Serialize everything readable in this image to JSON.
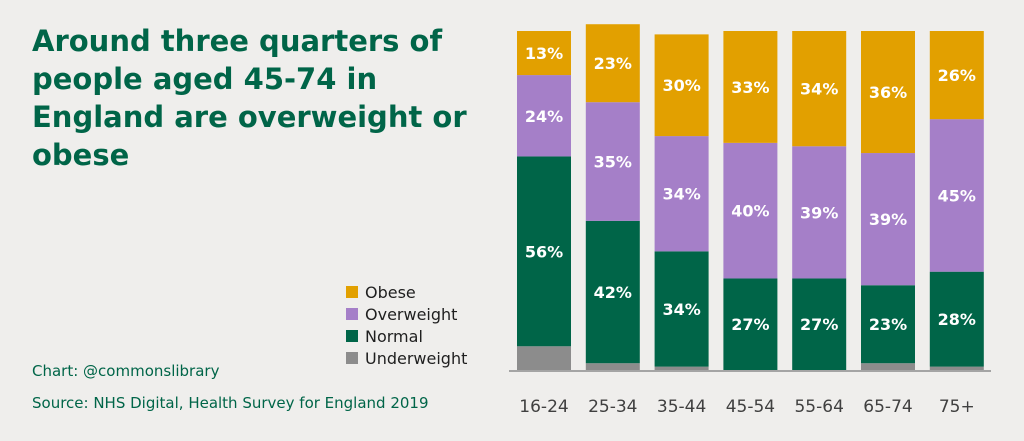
{
  "title": "Around three quarters of people aged 45-74 in England are overweight or obese",
  "credit": "Chart: @commonslibrary",
  "source": "Source: NHS Digital, Health Survey for England 2019",
  "colors": {
    "obese": "#e2a000",
    "overweight": "#a57fc8",
    "normal": "#006548",
    "underweight": "#8c8c8c",
    "axis": "#8c8c8c",
    "tick_text": "#404040",
    "title": "#006548"
  },
  "legend": [
    {
      "label": "Obese",
      "color": "#e2a000"
    },
    {
      "label": "Overweight",
      "color": "#a57fc8"
    },
    {
      "label": "Normal",
      "color": "#006548"
    },
    {
      "label": "Underweight",
      "color": "#8c8c8c"
    }
  ],
  "chart_data": {
    "type": "bar",
    "stacked": true,
    "categories": [
      "16-24",
      "25-34",
      "35-44",
      "45-54",
      "55-64",
      "65-74",
      "75+"
    ],
    "series": [
      {
        "name": "Underweight",
        "values": [
          7,
          2,
          1,
          0,
          0,
          2,
          1
        ]
      },
      {
        "name": "Normal",
        "values": [
          56,
          42,
          34,
          27,
          27,
          23,
          28
        ]
      },
      {
        "name": "Overweight",
        "values": [
          24,
          35,
          34,
          40,
          39,
          39,
          45
        ]
      },
      {
        "name": "Obese",
        "values": [
          13,
          23,
          30,
          33,
          34,
          36,
          26
        ]
      }
    ],
    "data_labels": {
      "Underweight": [
        "",
        "",
        "",
        "",
        "",
        "",
        ""
      ],
      "Normal": [
        "56%",
        "42%",
        "34%",
        "27%",
        "27%",
        "23%",
        "28%"
      ],
      "Overweight": [
        "24%",
        "35%",
        "34%",
        "40%",
        "39%",
        "39%",
        "45%"
      ],
      "Obese": [
        "13%",
        "23%",
        "30%",
        "33%",
        "34%",
        "36%",
        "26%"
      ]
    },
    "ylim": [
      0,
      100
    ],
    "grid": false,
    "legend_position": "left"
  }
}
